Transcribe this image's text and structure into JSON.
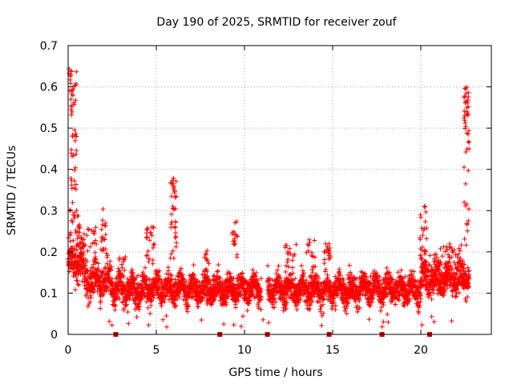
{
  "chart_data": {
    "type": "scatter",
    "title": "Day 190 of 2025, SRMTID for receiver zouf",
    "xlabel": "GPS time / hours",
    "ylabel": "SRMTID / TECUs",
    "xlim": [
      0,
      24
    ],
    "ylim": [
      0,
      0.7
    ],
    "x_ticks": [
      0,
      5,
      10,
      15,
      20
    ],
    "x_tick_labels": [
      "0",
      "5",
      "10",
      "15",
      "20"
    ],
    "y_ticks": [
      0,
      0.1,
      0.2,
      0.3,
      0.4,
      0.5,
      0.6,
      0.7
    ],
    "y_tick_labels": [
      "0",
      "0.1",
      "0.2",
      "0.3",
      "0.4",
      "0.5",
      "0.6",
      "0.7"
    ],
    "grid": true,
    "marker": "plus",
    "color": "#ff0000",
    "baseline_markers_x": [
      2.7,
      8.6,
      11.3,
      14.8,
      17.8,
      20.5
    ],
    "series_summary": [
      {
        "x_start": 0.0,
        "x_end": 0.8,
        "typical": 0.2,
        "peak": 0.64
      },
      {
        "x_start": 0.8,
        "x_end": 2.5,
        "typical": 0.13,
        "peak": 0.3
      },
      {
        "x_start": 2.5,
        "x_end": 5.0,
        "typical": 0.1,
        "peak": 0.24
      },
      {
        "x_start": 5.0,
        "x_end": 7.0,
        "typical": 0.13,
        "peak": 0.39
      },
      {
        "x_start": 7.0,
        "x_end": 11.0,
        "typical": 0.1,
        "peak": 0.29
      },
      {
        "x_start": 11.3,
        "x_end": 20.0,
        "typical": 0.12,
        "peak": 0.23
      },
      {
        "x_start": 20.0,
        "x_end": 21.0,
        "typical": 0.15,
        "peak": 0.32
      },
      {
        "x_start": 21.0,
        "x_end": 22.7,
        "typical": 0.14,
        "peak": 0.6
      }
    ]
  }
}
